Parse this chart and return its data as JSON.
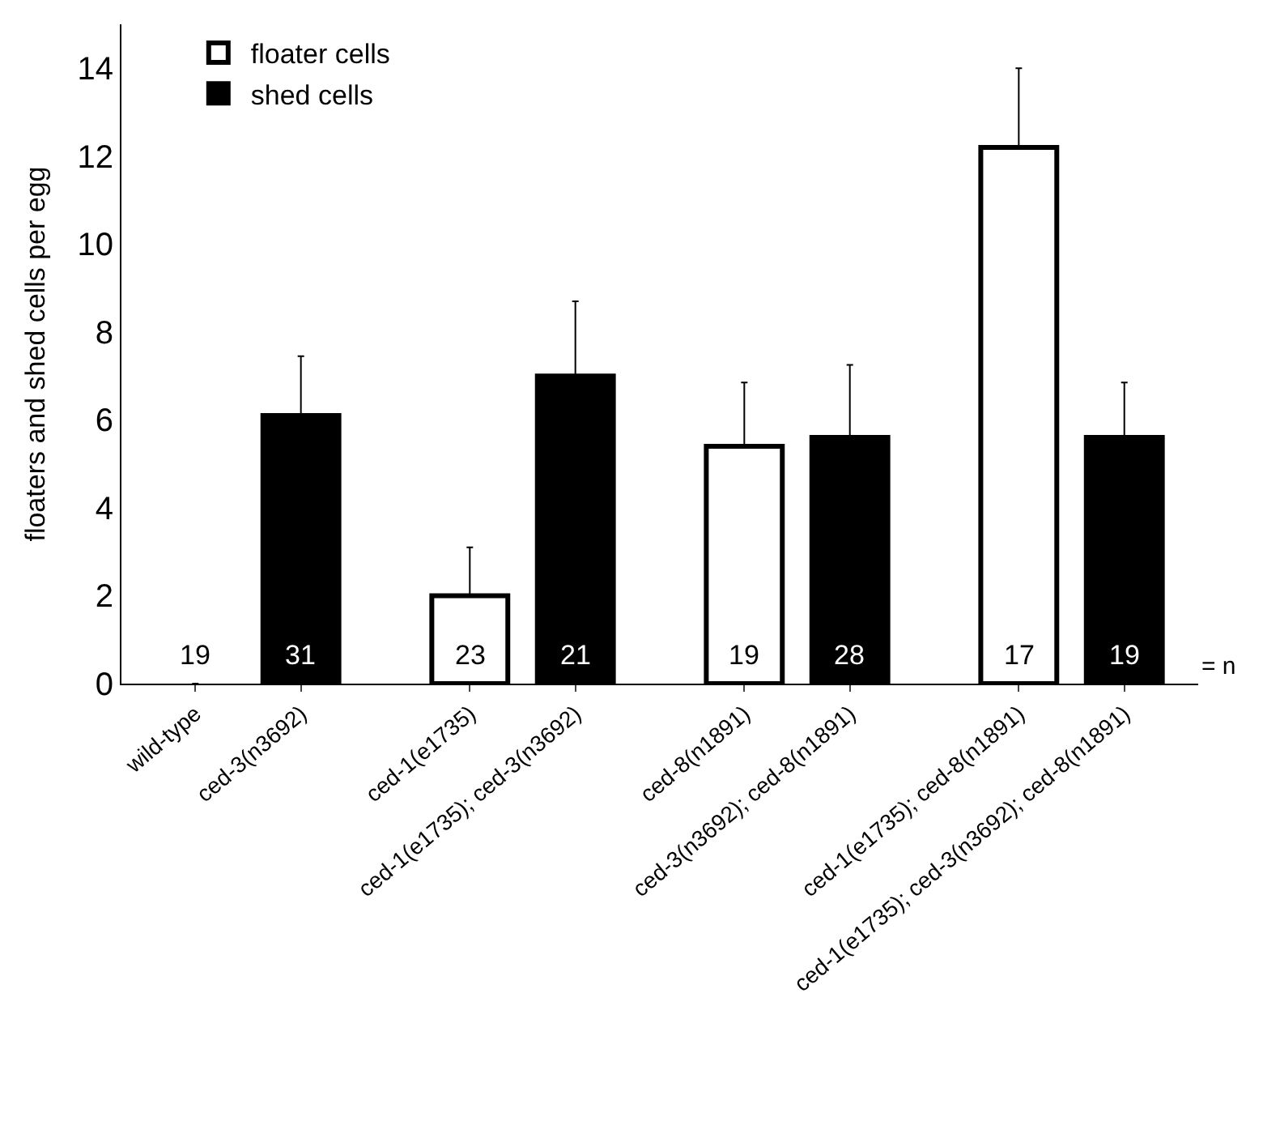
{
  "chart_data": {
    "type": "bar",
    "ylabel": "floaters and shed cells per egg",
    "categories": [
      "wild-type",
      "ced-3(n3692)",
      "ced-1(e1735)",
      "ced-1(e1735); ced-3(n3692)",
      "ced-8(n1891)",
      "ced-3(n3692); ced-8(n1891)",
      "ced-1(e1735); ced-8(n1891)",
      "ced-1(e1735); ced-3(n3692); ced-8(n1891)"
    ],
    "series": [
      {
        "name": "floater cells",
        "color": "#ffffff",
        "values": [
          0,
          null,
          2.0,
          null,
          5.4,
          null,
          12.2,
          null
        ],
        "errors": [
          null,
          null,
          [
            2.0,
            3.1
          ],
          null,
          [
            5.4,
            6.85
          ],
          null,
          [
            12.2,
            14.0
          ],
          null
        ]
      },
      {
        "name": "shed cells",
        "color": "#000000",
        "values": [
          null,
          6.1,
          null,
          7.0,
          null,
          5.6,
          null,
          5.6
        ],
        "errors": [
          null,
          [
            6.1,
            7.45
          ],
          null,
          [
            7.0,
            8.7
          ],
          null,
          [
            5.6,
            7.25
          ],
          null,
          [
            5.6,
            6.85
          ]
        ]
      }
    ],
    "ylim": [
      0,
      15
    ],
    "yticks": [
      0,
      2,
      4,
      6,
      8,
      10,
      12,
      14
    ],
    "legend": "top left",
    "annotations": [
      {
        "text": "19",
        "x": "wild-type",
        "y": 0
      },
      {
        "text": "31",
        "x": "ced-3(n3692)",
        "y": 0
      },
      {
        "text": "23",
        "x": "ced-1(e1735)",
        "y": 0
      },
      {
        "text": "21",
        "x": "ced-1(e1735); ced-3(n3692)",
        "y": 0
      },
      {
        "text": "19",
        "x": "ced-8(n1891)",
        "y": 0
      },
      {
        "text": "28",
        "x": "ced-3(n3692); ced-8(n1891)",
        "y": 0
      },
      {
        "text": "17",
        "x": "ced-1(e1735); ced-8(n1891)",
        "y": 0
      },
      {
        "text": "19",
        "x": "ced-1(e1735); ced-3(n3692); ced-8(n1891)",
        "y": 0
      },
      "= n"
    ]
  }
}
